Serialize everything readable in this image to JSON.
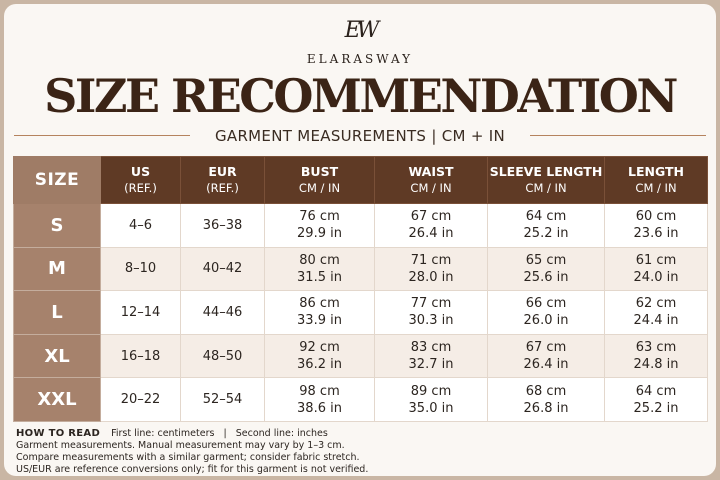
{
  "brand": {
    "monogram": "EW",
    "name": "ELARASWAY"
  },
  "title": "SIZE RECOMMENDATION",
  "subtitle": "GARMENT MEASUREMENTS | CM + IN",
  "table": {
    "size_header": "SIZE",
    "columns": [
      {
        "label": "US",
        "sub": "(REF.)"
      },
      {
        "label": "EUR",
        "sub": "(REF.)"
      },
      {
        "label": "BUST",
        "sub": "CM / IN"
      },
      {
        "label": "WAIST",
        "sub": "CM / IN"
      },
      {
        "label": "SLEEVE LENGTH",
        "sub": "CM / IN"
      },
      {
        "label": "LENGTH",
        "sub": "CM / IN"
      }
    ],
    "rows": [
      {
        "size": "S",
        "us": "4–6",
        "eur": "36–38",
        "bust_cm": "76 cm",
        "bust_in": "29.9 in",
        "waist_cm": "67 cm",
        "waist_in": "26.4 in",
        "sleeve_cm": "64 cm",
        "sleeve_in": "25.2 in",
        "length_cm": "60 cm",
        "length_in": "23.6 in"
      },
      {
        "size": "M",
        "us": "8–10",
        "eur": "40–42",
        "bust_cm": "80 cm",
        "bust_in": "31.5 in",
        "waist_cm": "71 cm",
        "waist_in": "28.0 in",
        "sleeve_cm": "65 cm",
        "sleeve_in": "25.6 in",
        "length_cm": "61 cm",
        "length_in": "24.0 in"
      },
      {
        "size": "L",
        "us": "12–14",
        "eur": "44–46",
        "bust_cm": "86 cm",
        "bust_in": "33.9 in",
        "waist_cm": "77 cm",
        "waist_in": "30.3 in",
        "sleeve_cm": "66 cm",
        "sleeve_in": "26.0 in",
        "length_cm": "62 cm",
        "length_in": "24.4 in"
      },
      {
        "size": "XL",
        "us": "16–18",
        "eur": "48–50",
        "bust_cm": "92 cm",
        "bust_in": "36.2 in",
        "waist_cm": "83 cm",
        "waist_in": "32.7 in",
        "sleeve_cm": "67 cm",
        "sleeve_in": "26.4 in",
        "length_cm": "63 cm",
        "length_in": "24.8 in"
      },
      {
        "size": "XXL",
        "us": "20–22",
        "eur": "52–54",
        "bust_cm": "98 cm",
        "bust_in": "38.6 in",
        "waist_cm": "89 cm",
        "waist_in": "35.0 in",
        "sleeve_cm": "68 cm",
        "sleeve_in": "26.8 in",
        "length_cm": "64 cm",
        "length_in": "25.2 in"
      }
    ]
  },
  "how_to_read": {
    "title": "HOW TO READ",
    "first_line": "First line: centimeters",
    "separator": "|",
    "second_line": "Second line: inches",
    "notes": [
      "Garment measurements. Manual measurement may vary by 1–3 cm.",
      "Compare measurements with a similar garment; consider fabric stretch.",
      "US/EUR are reference conversions only; fit for this garment is not verified."
    ]
  }
}
